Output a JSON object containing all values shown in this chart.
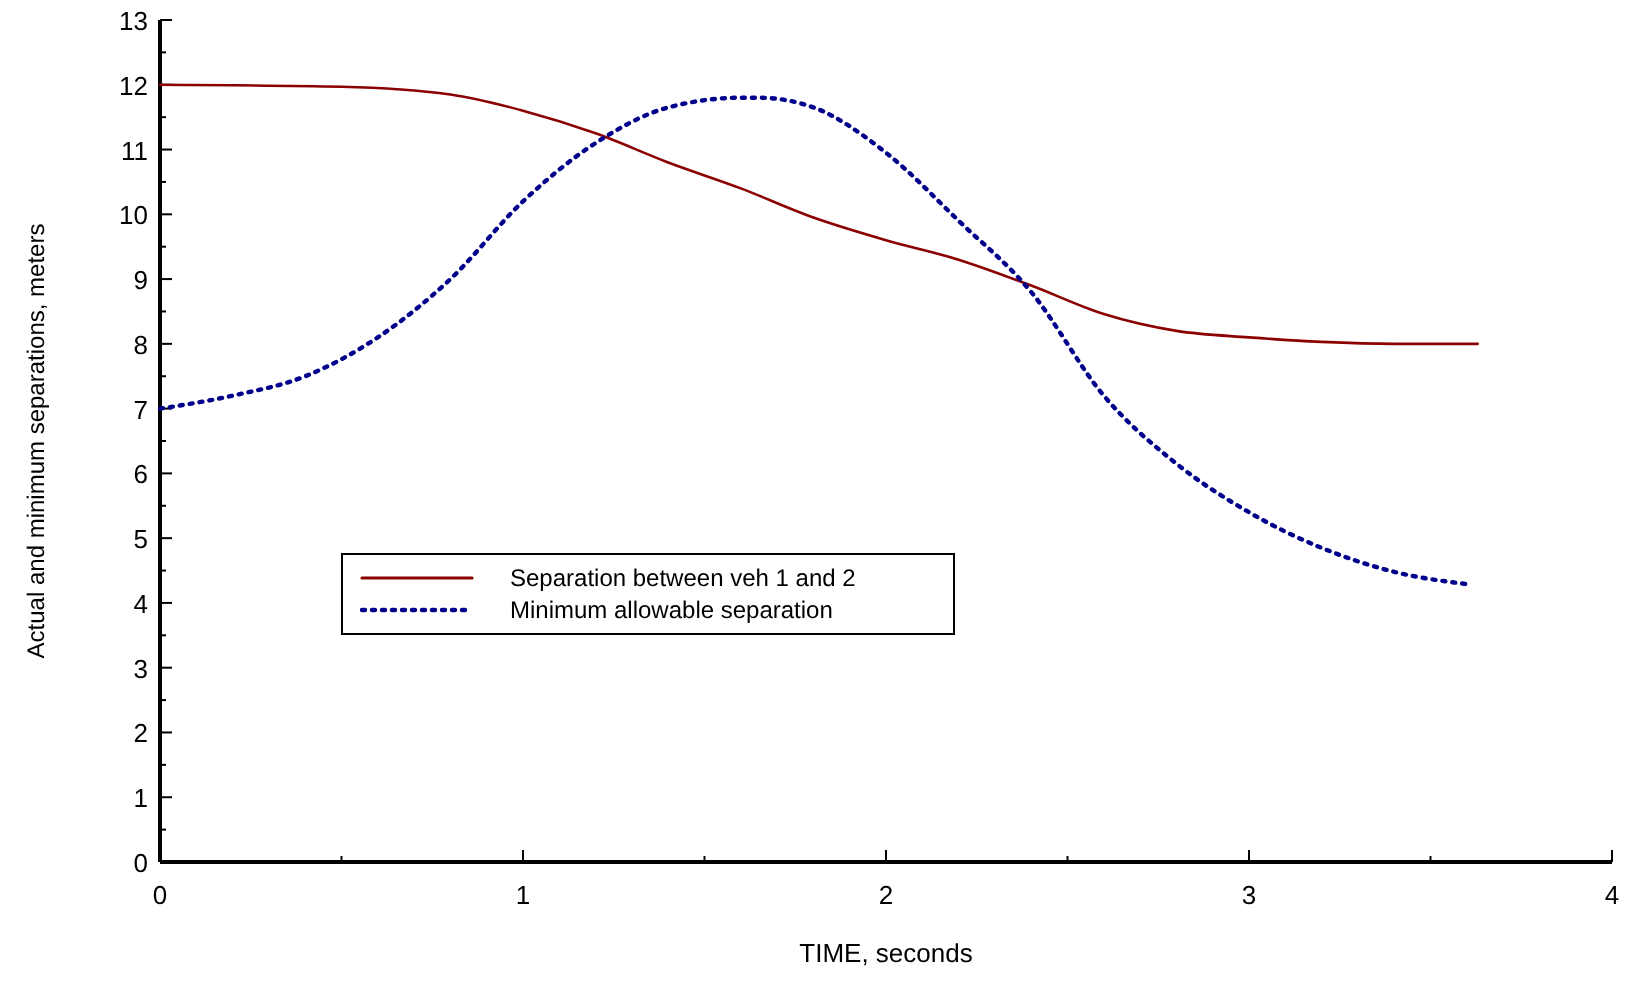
{
  "chart_data": {
    "type": "line",
    "xlabel": "TIME, seconds",
    "ylabel": "Actual and minimum separations, meters",
    "xlim": [
      0,
      4
    ],
    "xticks": [
      0,
      1,
      2,
      3,
      4
    ],
    "ylim": [
      0,
      13
    ],
    "yticks": [
      0,
      1,
      2,
      3,
      4,
      5,
      6,
      7,
      8,
      9,
      10,
      11,
      12,
      13
    ],
    "grid": false,
    "legend": "left",
    "marker": "none",
    "series": [
      {
        "name": "Separation between veh 1 and 2",
        "color": "#8b0000",
        "line_style": "solid",
        "x": [
          0,
          0.5,
          0.8,
          1.0,
          1.2,
          1.4,
          1.6,
          1.8,
          2.0,
          2.2,
          2.4,
          2.6,
          2.8,
          3.0,
          3.2,
          3.4,
          3.63
        ],
        "values": [
          12,
          11.97,
          11.85,
          11.6,
          11.25,
          10.8,
          10.4,
          9.95,
          9.6,
          9.3,
          8.9,
          8.46,
          8.2,
          8.1,
          8.03,
          8.0,
          8.0
        ]
      },
      {
        "name": "Minimum allowable separation",
        "color": "#00008b",
        "line_style": "dotted",
        "x": [
          0,
          0.2,
          0.4,
          0.6,
          0.8,
          1.0,
          1.2,
          1.4,
          1.6,
          1.65,
          1.8,
          2.0,
          2.2,
          2.4,
          2.6,
          2.8,
          3.0,
          3.2,
          3.4,
          3.6
        ],
        "values": [
          7.0,
          7.2,
          7.5,
          8.1,
          9.0,
          10.2,
          11.1,
          11.65,
          11.8,
          11.8,
          11.65,
          10.95,
          9.9,
          8.8,
          7.2,
          6.15,
          5.4,
          4.85,
          4.48,
          4.29
        ]
      }
    ]
  }
}
